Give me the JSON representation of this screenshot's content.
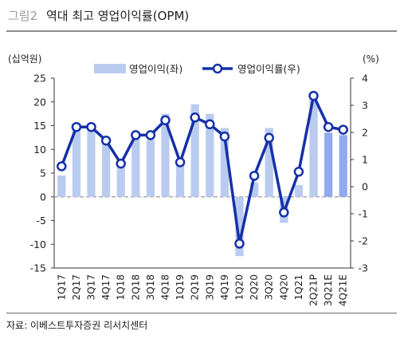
{
  "title": {
    "prefix": "그림2",
    "text": "역대 최고 영업이익률(OPM)"
  },
  "source": "자료: 이베스트투자증권 리서치센터",
  "chart_data": {
    "type": "bar",
    "categories": [
      "1Q17",
      "2Q17",
      "3Q17",
      "4Q17",
      "1Q18",
      "2Q18",
      "3Q18",
      "4Q18",
      "1Q19",
      "2Q19",
      "3Q19",
      "4Q19",
      "1Q20",
      "2Q20",
      "3Q20",
      "4Q20",
      "1Q21",
      "2Q21P",
      "3Q21E",
      "4Q21E"
    ],
    "y_left": {
      "unit": "(십억원)",
      "ylim": [
        -15,
        25
      ],
      "ticks": [
        -15,
        -10,
        -5,
        0,
        5,
        10,
        15,
        20,
        25
      ]
    },
    "y_right": {
      "unit": "(%)",
      "ylim": [
        -3,
        4
      ],
      "ticks": [
        -3,
        -2,
        -1,
        0,
        1,
        2,
        3,
        4
      ]
    },
    "series": [
      {
        "name": "영업이익(좌)",
        "type": "bar",
        "axis": "left",
        "color": "#b9cbef",
        "forecast_color": "#8faaee",
        "values": [
          4.5,
          14.5,
          15.5,
          12.5,
          7.5,
          12.5,
          12.0,
          17.5,
          7.5,
          19.5,
          17.5,
          14.5,
          -12.5,
          3.0,
          14.5,
          -5.5,
          2.5,
          21.0,
          13.5,
          13.0
        ],
        "forecast_from_index": 18
      },
      {
        "name": "영업이익률(우)",
        "type": "line",
        "axis": "right",
        "color": "#1530a8",
        "marker": "circle-white",
        "values": [
          0.75,
          2.2,
          2.2,
          1.7,
          0.85,
          1.9,
          1.9,
          2.45,
          0.9,
          2.55,
          2.3,
          1.85,
          -2.1,
          0.4,
          1.8,
          -0.95,
          0.55,
          3.35,
          2.2,
          2.1
        ]
      }
    ],
    "baseline": {
      "value": 0,
      "style": "dashed",
      "color": "#aaaaaa"
    },
    "grid": false,
    "legend": "top"
  }
}
